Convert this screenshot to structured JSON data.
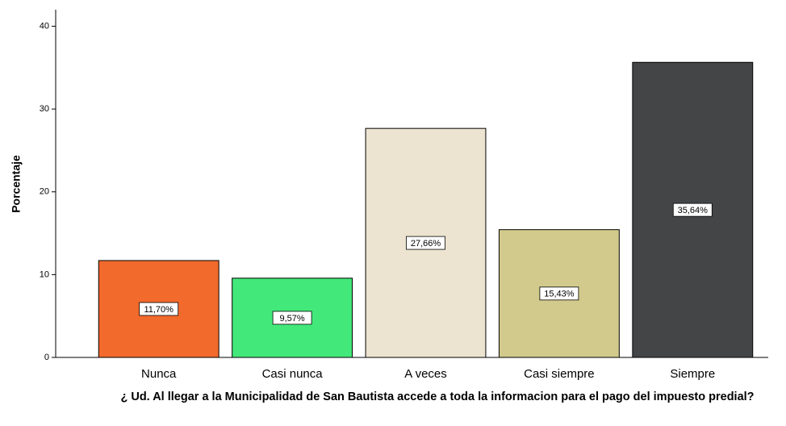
{
  "chart_data": {
    "type": "bar",
    "categories": [
      "Nunca",
      "Casi nunca",
      "A veces",
      "Casi siempre",
      "Siempre"
    ],
    "values": [
      11.7,
      9.57,
      27.66,
      15.43,
      35.64
    ],
    "value_labels": [
      "11,70%",
      "9,57%",
      "27,66%",
      "15,43%",
      "35,64%"
    ],
    "colors": [
      "#f26a2c",
      "#43e87a",
      "#ece4d0",
      "#d1ca8c",
      "#444546"
    ],
    "ylim": [
      0,
      42
    ],
    "yticks": [
      0,
      10,
      20,
      30,
      40
    ],
    "ylabel": "Porcentaje",
    "xlabel": "¿ Ud. Al llegar a la Municipalidad de San Bautista accede a toda la informacion para el pago del impuesto predial?"
  }
}
